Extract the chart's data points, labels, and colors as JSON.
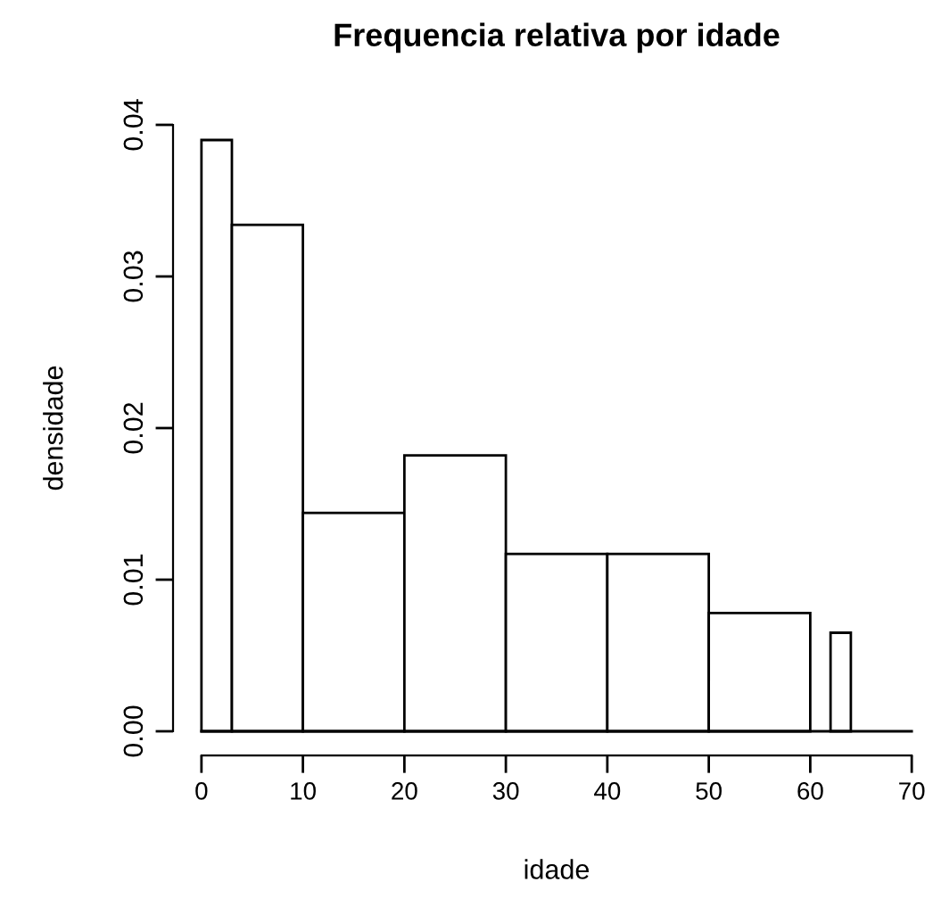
{
  "chart_data": {
    "type": "histogram",
    "title": "Frequencia relativa por idade",
    "xlabel": "idade",
    "ylabel": "densidade",
    "bins": [
      0,
      3,
      10,
      20,
      30,
      40,
      50,
      60,
      62,
      64
    ],
    "values": [
      0.039,
      0.0334,
      0.0144,
      0.0182,
      0.0117,
      0.0117,
      0.0078,
      0,
      0.0065
    ],
    "color": "#ffffff",
    "xlim": [
      0,
      70
    ],
    "ylim": [
      0,
      0.04
    ],
    "xticks": [
      0,
      10,
      20,
      30,
      40,
      50,
      60,
      70
    ],
    "yticks": [
      {
        "value": 0,
        "label": "0.00"
      },
      {
        "value": 0.01,
        "label": "0.01"
      },
      {
        "value": 0.02,
        "label": "0.02"
      },
      {
        "value": 0.03,
        "label": "0.03"
      },
      {
        "value": 0.04,
        "label": "0.04"
      }
    ],
    "grid": false
  }
}
